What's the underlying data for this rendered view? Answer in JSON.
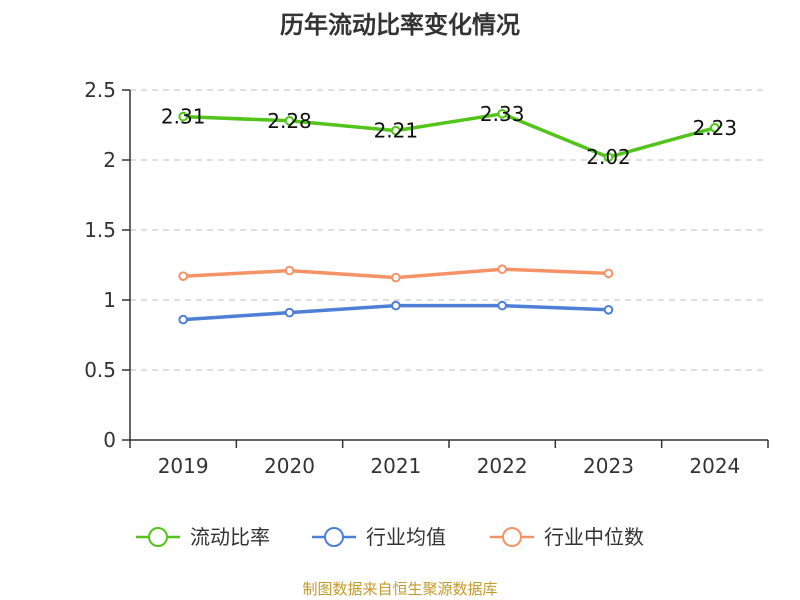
{
  "chart_data": {
    "type": "line",
    "title": "历年流动比率变化情况",
    "categories": [
      "2019",
      "2020",
      "2021",
      "2022",
      "2023",
      "2024"
    ],
    "ylim": [
      0,
      2.5
    ],
    "yticks": [
      0,
      0.5,
      1,
      1.5,
      2,
      2.5
    ],
    "ytick_labels": [
      "0",
      "0.5",
      "1",
      "1.5",
      "2",
      "2.5"
    ],
    "grid": true,
    "legend_position": "bottom",
    "series": [
      {
        "name": "流动比率",
        "color": "#52c41a",
        "values": [
          2.31,
          2.28,
          2.21,
          2.33,
          2.02,
          2.23
        ],
        "labels": [
          "2.31",
          "2.28",
          "2.21",
          "2.33",
          "2.02",
          "2.23"
        ]
      },
      {
        "name": "行业均值",
        "color": "#4e7fd6",
        "values": [
          0.86,
          0.91,
          0.96,
          0.96,
          0.93,
          null
        ]
      },
      {
        "name": "行业中位数",
        "color": "#f59367",
        "values": [
          1.17,
          1.21,
          1.16,
          1.22,
          1.19,
          null
        ]
      }
    ]
  },
  "source_text": "制图数据来自恒生聚源数据库"
}
